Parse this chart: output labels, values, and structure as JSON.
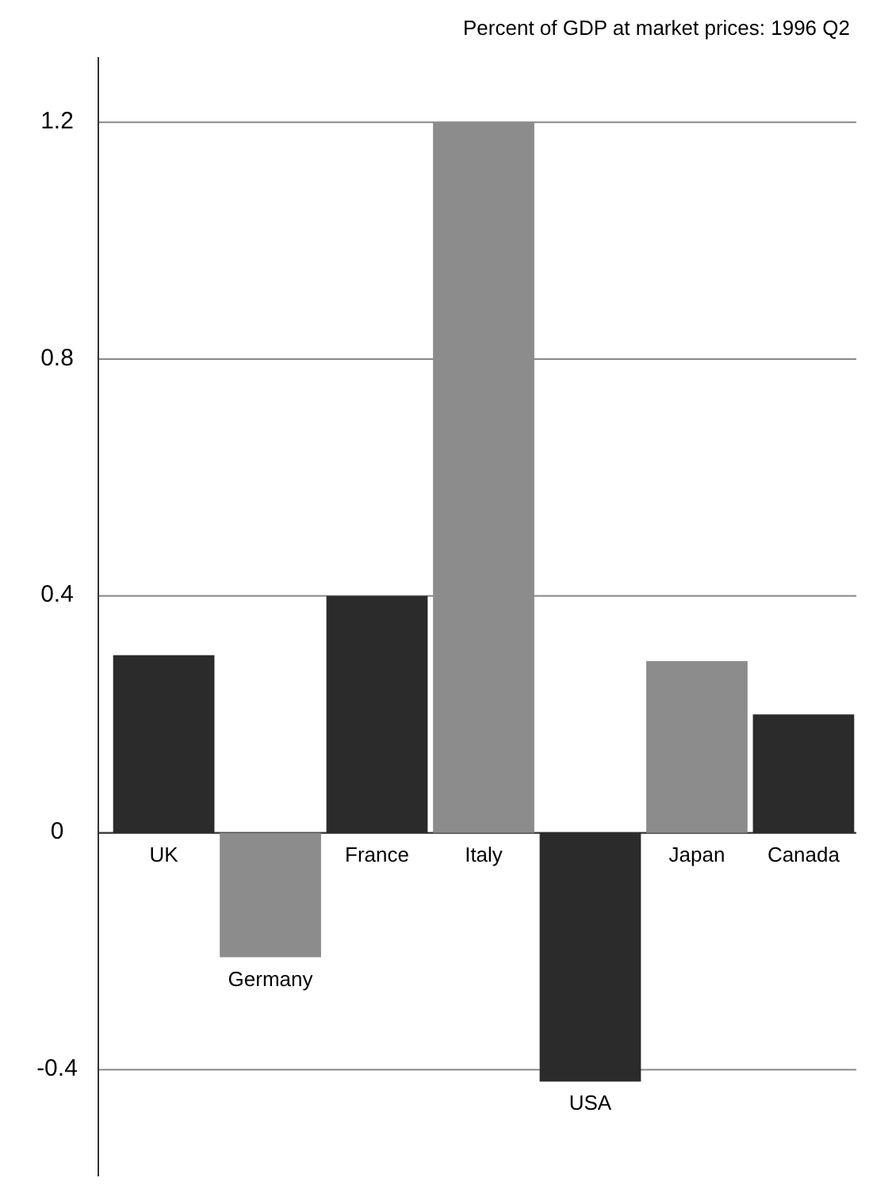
{
  "chart_data": {
    "type": "bar",
    "title": "Percent of GDP at market prices: 1996 Q2",
    "categories": [
      "UK",
      "Germany",
      "France",
      "Italy",
      "USA",
      "Japan",
      "Canada"
    ],
    "values": [
      0.3,
      -0.21,
      0.4,
      1.2,
      -0.42,
      0.29,
      0.2
    ],
    "colors": [
      "#2b2b2b",
      "#8c8c8c",
      "#2b2b2b",
      "#8c8c8c",
      "#2b2b2b",
      "#8c8c8c",
      "#2b2b2b"
    ],
    "ylim": [
      -0.58,
      1.31
    ],
    "yticks": [
      -0.4,
      0,
      0.4,
      0.8,
      1.2
    ],
    "grid": "y"
  }
}
